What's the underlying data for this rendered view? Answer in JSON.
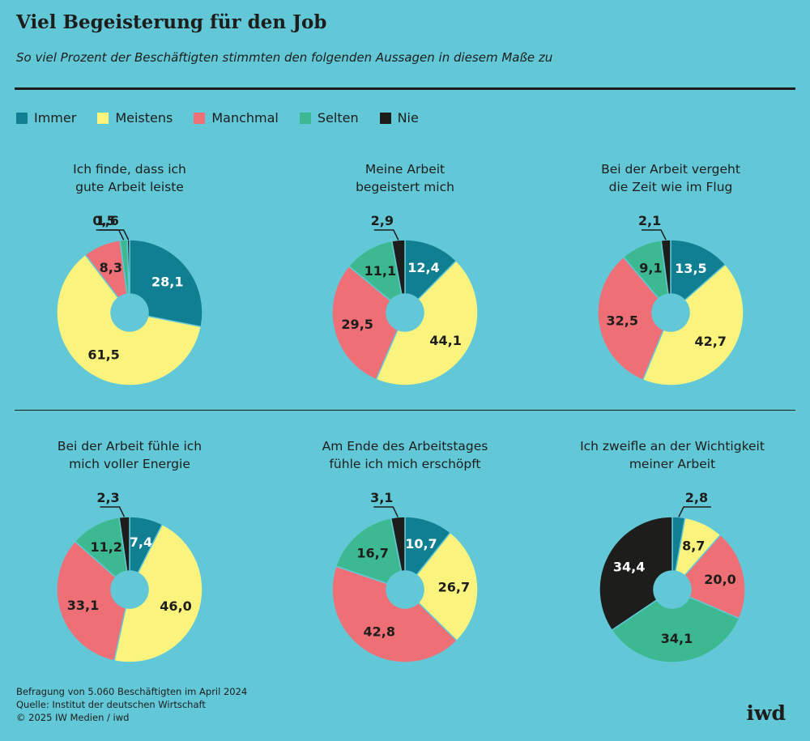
{
  "header": {
    "title": "Viel Begeisterung für den Job",
    "subtitle": "So viel Prozent der Beschäftigten stimmten den folgenden Aussagen in diesem Maße zu"
  },
  "legend": [
    {
      "label": "Immer",
      "color": "#0f7f91"
    },
    {
      "label": "Meistens",
      "color": "#faf47f"
    },
    {
      "label": "Manchmal",
      "color": "#ee6f75"
    },
    {
      "label": "Selten",
      "color": "#3db991"
    },
    {
      "label": "Nie",
      "color": "#1d1d1b"
    }
  ],
  "chart_data": [
    {
      "type": "pie",
      "title": "Ich finde, dass ich\ngute Arbeit leiste",
      "categories": [
        "Immer",
        "Meistens",
        "Manchmal",
        "Selten",
        "Nie"
      ],
      "values": [
        28.1,
        61.5,
        8.3,
        1.6,
        0.5
      ],
      "labels": [
        "28,1",
        "61,5",
        "8,3",
        "1,6",
        "0,5"
      ]
    },
    {
      "type": "pie",
      "title": "Meine Arbeit\nbegeistert mich",
      "categories": [
        "Immer",
        "Meistens",
        "Manchmal",
        "Selten",
        "Nie"
      ],
      "values": [
        12.4,
        44.1,
        29.5,
        11.1,
        2.9
      ],
      "labels": [
        "12,4",
        "44,1",
        "29,5",
        "11,1",
        "2,9"
      ]
    },
    {
      "type": "pie",
      "title": "Bei der Arbeit vergeht\ndie Zeit wie im Flug",
      "categories": [
        "Immer",
        "Meistens",
        "Manchmal",
        "Selten",
        "Nie"
      ],
      "values": [
        13.5,
        42.7,
        32.5,
        9.1,
        2.1
      ],
      "labels": [
        "13,5",
        "42,7",
        "32,5",
        "9,1",
        "2,1"
      ]
    },
    {
      "type": "pie",
      "title": "Bei der Arbeit fühle ich\nmich voller Energie",
      "categories": [
        "Immer",
        "Meistens",
        "Manchmal",
        "Selten",
        "Nie"
      ],
      "values": [
        7.4,
        46.0,
        33.1,
        11.2,
        2.3
      ],
      "labels": [
        "7,4",
        "46,0",
        "33,1",
        "11,2",
        "2,3"
      ]
    },
    {
      "type": "pie",
      "title": "Am Ende des Arbeitstages\nfühle ich mich erschöpft",
      "categories": [
        "Immer",
        "Meistens",
        "Manchmal",
        "Selten",
        "Nie"
      ],
      "values": [
        10.7,
        26.7,
        42.8,
        16.7,
        3.1
      ],
      "labels": [
        "10,7",
        "26,7",
        "42,8",
        "16,7",
        "3,1"
      ]
    },
    {
      "type": "pie",
      "title": "Ich zweifle an der Wichtigkeit\nmeiner Arbeit",
      "categories": [
        "Immer",
        "Meistens",
        "Manchmal",
        "Selten",
        "Nie"
      ],
      "values": [
        2.8,
        8.7,
        20.0,
        34.1,
        34.4
      ],
      "labels": [
        "2,8",
        "8,7",
        "20,0",
        "34,1",
        "34,4"
      ]
    }
  ],
  "footer": {
    "line1": "Befragung von 5.060 Beschäftigten im April 2024",
    "line2": "Quelle: Institut der deutschen Wirtschaft",
    "line3": "© 2025 IW Medien / iwd"
  },
  "logo": "iwd"
}
